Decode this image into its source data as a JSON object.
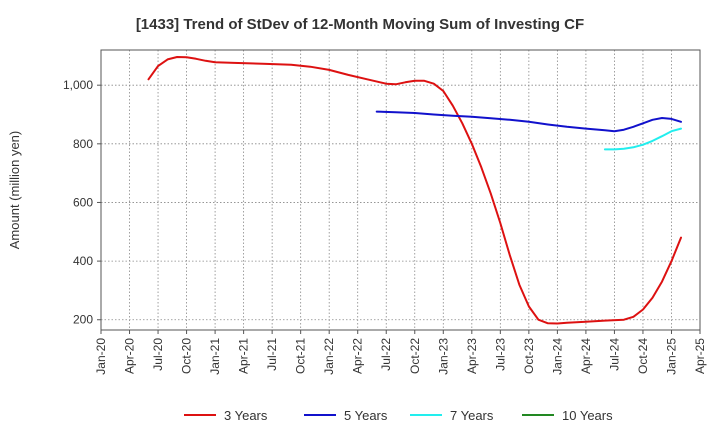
{
  "chart_data": {
    "type": "line",
    "title": "[1433]  Trend of StDev of 12-Month Moving Sum of Investing CF",
    "xlabel": "",
    "ylabel": "Amount (million yen)",
    "ylim": [
      165,
      1120
    ],
    "xlim": [
      "2020-01",
      "2025-04"
    ],
    "yticks": [
      200,
      400,
      600,
      800,
      1000
    ],
    "ytick_labels": [
      "200",
      "400",
      "600",
      "800",
      "1,000"
    ],
    "xticks": [
      "Jan-20",
      "Apr-20",
      "Jul-20",
      "Oct-20",
      "Jan-21",
      "Apr-21",
      "Jul-21",
      "Oct-21",
      "Jan-22",
      "Apr-22",
      "Jul-22",
      "Oct-22",
      "Jan-23",
      "Apr-23",
      "Jul-23",
      "Oct-23",
      "Jan-24",
      "Apr-24",
      "Jul-24",
      "Oct-24",
      "Jan-25",
      "Apr-25"
    ],
    "grid": true,
    "legend_position": "bottom",
    "series": [
      {
        "name": "3 Years",
        "color": "#dd1111",
        "points": [
          [
            "2020-06",
            1020
          ],
          [
            "2020-07",
            1065
          ],
          [
            "2020-08",
            1088
          ],
          [
            "2020-09",
            1096
          ],
          [
            "2020-10",
            1095
          ],
          [
            "2020-11",
            1090
          ],
          [
            "2020-12",
            1083
          ],
          [
            "2021-01",
            1078
          ],
          [
            "2021-03",
            1076
          ],
          [
            "2021-06",
            1073
          ],
          [
            "2021-09",
            1070
          ],
          [
            "2021-11",
            1063
          ],
          [
            "2022-01",
            1052
          ],
          [
            "2022-03",
            1035
          ],
          [
            "2022-05",
            1020
          ],
          [
            "2022-07",
            1005
          ],
          [
            "2022-08",
            1003
          ],
          [
            "2022-09",
            1010
          ],
          [
            "2022-10",
            1015
          ],
          [
            "2022-11",
            1015
          ],
          [
            "2022-12",
            1005
          ],
          [
            "2023-01",
            980
          ],
          [
            "2023-02",
            930
          ],
          [
            "2023-03",
            870
          ],
          [
            "2023-04",
            800
          ],
          [
            "2023-05",
            720
          ],
          [
            "2023-06",
            630
          ],
          [
            "2023-07",
            530
          ],
          [
            "2023-08",
            420
          ],
          [
            "2023-09",
            320
          ],
          [
            "2023-10",
            245
          ],
          [
            "2023-11",
            200
          ],
          [
            "2023-12",
            188
          ],
          [
            "2024-01",
            187
          ],
          [
            "2024-02",
            190
          ],
          [
            "2024-04",
            193
          ],
          [
            "2024-06",
            197
          ],
          [
            "2024-08",
            200
          ],
          [
            "2024-09",
            210
          ],
          [
            "2024-10",
            235
          ],
          [
            "2024-11",
            275
          ],
          [
            "2024-12",
            330
          ],
          [
            "2025-01",
            400
          ],
          [
            "2025-02",
            480
          ]
        ]
      },
      {
        "name": "5 Years",
        "color": "#1111cc",
        "points": [
          [
            "2022-06",
            910
          ],
          [
            "2022-08",
            908
          ],
          [
            "2022-10",
            905
          ],
          [
            "2022-12",
            900
          ],
          [
            "2023-02",
            896
          ],
          [
            "2023-04",
            892
          ],
          [
            "2023-06",
            887
          ],
          [
            "2023-08",
            882
          ],
          [
            "2023-10",
            875
          ],
          [
            "2023-12",
            866
          ],
          [
            "2024-02",
            858
          ],
          [
            "2024-04",
            852
          ],
          [
            "2024-06",
            846
          ],
          [
            "2024-07",
            843
          ],
          [
            "2024-08",
            848
          ],
          [
            "2024-09",
            858
          ],
          [
            "2024-10",
            870
          ],
          [
            "2024-11",
            882
          ],
          [
            "2024-12",
            888
          ],
          [
            "2025-01",
            885
          ],
          [
            "2025-02",
            875
          ]
        ]
      },
      {
        "name": "7 Years",
        "color": "#22eeee",
        "points": [
          [
            "2024-06",
            781
          ],
          [
            "2024-07",
            781
          ],
          [
            "2024-08",
            783
          ],
          [
            "2024-09",
            788
          ],
          [
            "2024-10",
            797
          ],
          [
            "2024-11",
            810
          ],
          [
            "2024-12",
            826
          ],
          [
            "2025-01",
            843
          ],
          [
            "2025-02",
            852
          ]
        ]
      },
      {
        "name": "10 Years",
        "color": "#228822",
        "points": []
      }
    ]
  }
}
